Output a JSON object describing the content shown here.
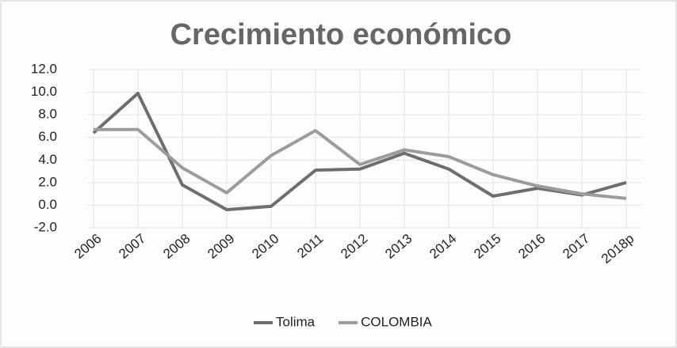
{
  "chart_data": {
    "type": "line",
    "title": "Crecimiento económico",
    "categories": [
      "2006",
      "2007",
      "2008",
      "2009",
      "2010",
      "2011",
      "2012",
      "2013",
      "2014",
      "2015",
      "2016",
      "2017",
      "2018p"
    ],
    "series": [
      {
        "name": "Tolima",
        "color": "#6e6e6e",
        "values": [
          6.4,
          9.9,
          1.8,
          -0.4,
          -0.1,
          3.1,
          3.2,
          4.6,
          3.2,
          0.8,
          1.5,
          0.9,
          2.0
        ]
      },
      {
        "name": "COLOMBIA",
        "color": "#9c9c9c",
        "values": [
          6.7,
          6.7,
          3.3,
          1.1,
          4.4,
          6.6,
          3.6,
          4.9,
          4.3,
          2.7,
          1.7,
          1.0,
          0.6
        ]
      }
    ],
    "ylim": [
      -2,
      12
    ],
    "yticks": [
      {
        "value": -2,
        "label": "-2.0"
      },
      {
        "value": 0,
        "label": "0.0"
      },
      {
        "value": 2,
        "label": "2.0"
      },
      {
        "value": 4,
        "label": "4.0"
      },
      {
        "value": 6,
        "label": "6.0"
      },
      {
        "value": 8,
        "label": "8.0"
      },
      {
        "value": 10,
        "label": "10.0"
      },
      {
        "value": 12,
        "label": "12.0"
      }
    ],
    "grid": true,
    "legend": "bottom"
  }
}
